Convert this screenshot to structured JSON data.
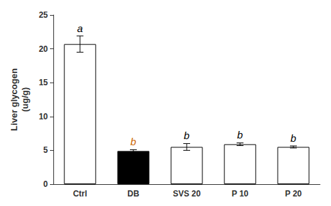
{
  "chart_data": {
    "type": "bar",
    "categories": [
      "Ctrl",
      "DB",
      "SVS 20",
      "P 10",
      "P 20"
    ],
    "values": [
      20.7,
      4.9,
      5.5,
      5.9,
      5.5
    ],
    "errors": [
      1.2,
      0.2,
      0.5,
      0.2,
      0.15
    ],
    "colors": [
      "white",
      "black",
      "white",
      "white",
      "white"
    ],
    "annotations": [
      {
        "category": "Ctrl",
        "text": "a",
        "color": "black"
      },
      {
        "category": "DB",
        "text": "b",
        "color": "#cc6600"
      },
      {
        "category": "SVS 20",
        "text": "b",
        "color": "black"
      },
      {
        "category": "P 10",
        "text": "b",
        "color": "black"
      },
      {
        "category": "P 20",
        "text": "b",
        "color": "black"
      }
    ],
    "ylabel": "Liver glycogen\n(ug/g)",
    "ylim": [
      0,
      25
    ],
    "yticks": [
      0,
      5,
      10,
      15,
      20,
      25
    ],
    "grid": false
  }
}
